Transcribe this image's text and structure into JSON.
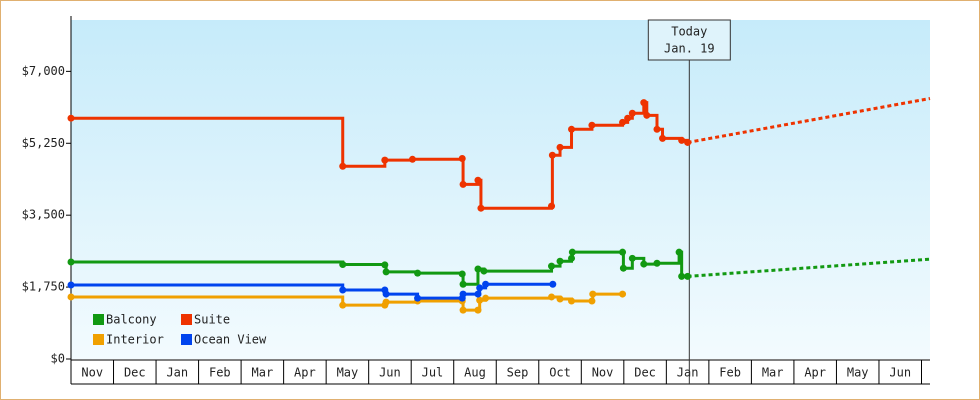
{
  "chart_data": {
    "type": "step",
    "ylim": [
      0,
      8250
    ],
    "yticks": [
      {
        "value": 0,
        "label": "$0"
      },
      {
        "value": 1750,
        "label": "$1,750"
      },
      {
        "value": 3500,
        "label": "$3,500"
      },
      {
        "value": 5250,
        "label": "$5,250"
      },
      {
        "value": 7000,
        "label": "$7,000"
      }
    ],
    "xlim": [
      0,
      20.2
    ],
    "xticks": [
      {
        "value": 0.5,
        "label": "Nov"
      },
      {
        "value": 1.5,
        "label": "Dec"
      },
      {
        "value": 2.5,
        "label": "Jan"
      },
      {
        "value": 3.5,
        "label": "Feb"
      },
      {
        "value": 4.5,
        "label": "Mar"
      },
      {
        "value": 5.5,
        "label": "Apr"
      },
      {
        "value": 6.5,
        "label": "May"
      },
      {
        "value": 7.5,
        "label": "Jun"
      },
      {
        "value": 8.5,
        "label": "Jul"
      },
      {
        "value": 9.5,
        "label": "Aug"
      },
      {
        "value": 10.5,
        "label": "Sep"
      },
      {
        "value": 11.5,
        "label": "Oct"
      },
      {
        "value": 12.5,
        "label": "Nov"
      },
      {
        "value": 13.5,
        "label": "Dec"
      },
      {
        "value": 14.5,
        "label": "Jan"
      },
      {
        "value": 15.5,
        "label": "Feb"
      },
      {
        "value": 16.5,
        "label": "Mar"
      },
      {
        "value": 17.5,
        "label": "Apr"
      },
      {
        "value": 18.5,
        "label": "May"
      },
      {
        "value": 19.5,
        "label": "Jun"
      }
    ],
    "today": {
      "x": 14.54,
      "label": "Today",
      "date": "Jan. 19"
    },
    "series": [
      {
        "name": "Balcony",
        "color": "#129912",
        "x": [
          0,
          6.39,
          7.38,
          7.41,
          8.15,
          9.2,
          9.22,
          9.57,
          9.71,
          11.3,
          11.5,
          11.77,
          11.79,
          12.97,
          12.99,
          13.2,
          13.47,
          13.78,
          14.3,
          14.36,
          14.5
        ],
        "values": [
          2360,
          2300,
          2290,
          2120,
          2090,
          2070,
          1820,
          2190,
          2140,
          2260,
          2380,
          2450,
          2600,
          2600,
          2210,
          2450,
          2310,
          2330,
          2600,
          2010,
          2010
        ],
        "forecast_x": [
          14.5,
          20.2
        ],
        "forecast_values": [
          2010,
          2430
        ]
      },
      {
        "name": "Suite",
        "color": "#ee3300",
        "x": [
          0,
          6.39,
          7.38,
          8.03,
          9.2,
          9.22,
          9.57,
          9.64,
          11.3,
          11.32,
          11.5,
          11.77,
          12.25,
          12.97,
          13.09,
          13.2,
          13.47,
          13.54,
          13.78,
          13.91,
          14.36,
          14.5
        ],
        "values": [
          5860,
          4690,
          4840,
          4860,
          4880,
          4250,
          4350,
          3670,
          3720,
          4960,
          5150,
          5590,
          5690,
          5760,
          5860,
          5980,
          6240,
          5930,
          5590,
          5370,
          5320,
          5270
        ],
        "forecast_x": [
          14.5,
          20.2
        ],
        "forecast_values": [
          5270,
          6340
        ]
      },
      {
        "name": "Interior",
        "color": "#f0a000",
        "x": [
          0,
          6.39,
          7.38,
          7.41,
          8.15,
          9.2,
          9.22,
          9.57,
          9.61,
          9.75,
          11.3,
          11.5,
          11.77,
          12.25,
          12.27,
          12.97
        ],
        "values": [
          1510,
          1310,
          1310,
          1385,
          1410,
          1410,
          1190,
          1190,
          1430,
          1480,
          1510,
          1460,
          1410,
          1410,
          1580,
          1580
        ]
      },
      {
        "name": "Ocean View",
        "color": "#0044ee",
        "x": [
          0,
          6.39,
          7.38,
          7.41,
          8.15,
          9.2,
          9.22,
          9.57,
          9.61,
          9.75,
          11.33
        ],
        "values": [
          1800,
          1680,
          1680,
          1580,
          1480,
          1480,
          1580,
          1580,
          1730,
          1820,
          1820
        ]
      }
    ]
  }
}
